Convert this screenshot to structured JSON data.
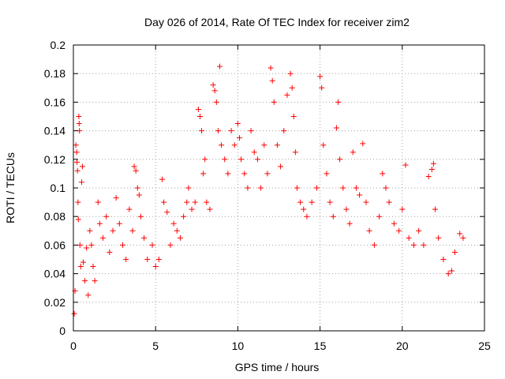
{
  "chart_data": {
    "type": "scatter",
    "title": "Day 026 of 2014, Rate Of TEC Index for receiver zim2",
    "xlabel": "GPS time / hours",
    "ylabel": "ROTI / TECUs",
    "xlim": [
      0,
      25
    ],
    "ylim": [
      0,
      0.2
    ],
    "xticks": [
      "0",
      "5",
      "10",
      "15",
      "20",
      "25"
    ],
    "yticks": [
      "0",
      "0.02",
      "0.04",
      "0.06",
      "0.08",
      "0.1",
      "0.12",
      "0.14",
      "0.16",
      "0.18",
      "0.2"
    ],
    "grid": "dotted",
    "legend": "none",
    "marker": "+",
    "color": "#ff0000",
    "series": [
      {
        "points": [
          [
            0.05,
            0.012
          ],
          [
            0.1,
            0.028
          ],
          [
            0.15,
            0.13
          ],
          [
            0.2,
            0.125
          ],
          [
            0.22,
            0.118
          ],
          [
            0.25,
            0.112
          ],
          [
            0.28,
            0.09
          ],
          [
            0.3,
            0.078
          ],
          [
            0.33,
            0.15
          ],
          [
            0.35,
            0.145
          ],
          [
            0.37,
            0.14
          ],
          [
            0.4,
            0.06
          ],
          [
            0.45,
            0.045
          ],
          [
            0.5,
            0.104
          ],
          [
            0.55,
            0.115
          ],
          [
            0.6,
            0.048
          ],
          [
            0.7,
            0.035
          ],
          [
            0.8,
            0.058
          ],
          [
            0.9,
            0.025
          ],
          [
            1.0,
            0.07
          ],
          [
            1.1,
            0.06
          ],
          [
            1.2,
            0.045
          ],
          [
            1.3,
            0.035
          ],
          [
            1.5,
            0.09
          ],
          [
            1.6,
            0.075
          ],
          [
            1.8,
            0.065
          ],
          [
            2.0,
            0.08
          ],
          [
            2.2,
            0.055
          ],
          [
            2.4,
            0.07
          ],
          [
            2.6,
            0.093
          ],
          [
            2.8,
            0.075
          ],
          [
            3.0,
            0.06
          ],
          [
            3.2,
            0.05
          ],
          [
            3.4,
            0.085
          ],
          [
            3.6,
            0.07
          ],
          [
            3.7,
            0.115
          ],
          [
            3.8,
            0.112
          ],
          [
            3.9,
            0.1
          ],
          [
            4.0,
            0.095
          ],
          [
            4.1,
            0.08
          ],
          [
            4.3,
            0.065
          ],
          [
            4.5,
            0.05
          ],
          [
            4.8,
            0.06
          ],
          [
            5.0,
            0.045
          ],
          [
            5.2,
            0.05
          ],
          [
            5.4,
            0.106
          ],
          [
            5.5,
            0.09
          ],
          [
            5.7,
            0.083
          ],
          [
            5.9,
            0.06
          ],
          [
            6.1,
            0.075
          ],
          [
            6.3,
            0.07
          ],
          [
            6.5,
            0.065
          ],
          [
            6.7,
            0.08
          ],
          [
            6.9,
            0.09
          ],
          [
            7.0,
            0.1
          ],
          [
            7.2,
            0.085
          ],
          [
            7.4,
            0.09
          ],
          [
            7.6,
            0.155
          ],
          [
            7.7,
            0.15
          ],
          [
            7.8,
            0.14
          ],
          [
            7.9,
            0.11
          ],
          [
            8.0,
            0.12
          ],
          [
            8.1,
            0.09
          ],
          [
            8.3,
            0.085
          ],
          [
            8.5,
            0.172
          ],
          [
            8.6,
            0.168
          ],
          [
            8.7,
            0.16
          ],
          [
            8.8,
            0.14
          ],
          [
            8.9,
            0.185
          ],
          [
            9.0,
            0.13
          ],
          [
            9.2,
            0.12
          ],
          [
            9.4,
            0.11
          ],
          [
            9.6,
            0.14
          ],
          [
            9.8,
            0.13
          ],
          [
            10.0,
            0.145
          ],
          [
            10.1,
            0.135
          ],
          [
            10.2,
            0.12
          ],
          [
            10.4,
            0.11
          ],
          [
            10.6,
            0.1
          ],
          [
            10.8,
            0.14
          ],
          [
            11.0,
            0.125
          ],
          [
            11.2,
            0.12
          ],
          [
            11.4,
            0.1
          ],
          [
            11.6,
            0.13
          ],
          [
            11.8,
            0.11
          ],
          [
            12.0,
            0.184
          ],
          [
            12.1,
            0.175
          ],
          [
            12.2,
            0.16
          ],
          [
            12.4,
            0.13
          ],
          [
            12.6,
            0.115
          ],
          [
            12.8,
            0.14
          ],
          [
            13.0,
            0.165
          ],
          [
            13.2,
            0.18
          ],
          [
            13.3,
            0.17
          ],
          [
            13.4,
            0.15
          ],
          [
            13.5,
            0.125
          ],
          [
            13.6,
            0.1
          ],
          [
            13.8,
            0.09
          ],
          [
            14.0,
            0.085
          ],
          [
            14.2,
            0.08
          ],
          [
            14.5,
            0.09
          ],
          [
            14.8,
            0.1
          ],
          [
            15.0,
            0.178
          ],
          [
            15.1,
            0.17
          ],
          [
            15.2,
            0.13
          ],
          [
            15.4,
            0.11
          ],
          [
            15.6,
            0.09
          ],
          [
            15.8,
            0.08
          ],
          [
            16.0,
            0.142
          ],
          [
            16.1,
            0.16
          ],
          [
            16.2,
            0.12
          ],
          [
            16.4,
            0.1
          ],
          [
            16.6,
            0.085
          ],
          [
            16.8,
            0.075
          ],
          [
            17.0,
            0.125
          ],
          [
            17.2,
            0.1
          ],
          [
            17.4,
            0.095
          ],
          [
            17.6,
            0.131
          ],
          [
            17.8,
            0.09
          ],
          [
            18.0,
            0.07
          ],
          [
            18.3,
            0.06
          ],
          [
            18.6,
            0.08
          ],
          [
            18.8,
            0.11
          ],
          [
            19.0,
            0.1
          ],
          [
            19.2,
            0.09
          ],
          [
            19.5,
            0.075
          ],
          [
            19.8,
            0.07
          ],
          [
            20.0,
            0.085
          ],
          [
            20.2,
            0.116
          ],
          [
            20.4,
            0.065
          ],
          [
            20.7,
            0.06
          ],
          [
            21.0,
            0.07
          ],
          [
            21.3,
            0.06
          ],
          [
            21.6,
            0.108
          ],
          [
            21.8,
            0.113
          ],
          [
            21.9,
            0.117
          ],
          [
            22.0,
            0.085
          ],
          [
            22.2,
            0.065
          ],
          [
            22.5,
            0.05
          ],
          [
            22.8,
            0.04
          ],
          [
            23.0,
            0.042
          ],
          [
            23.2,
            0.055
          ],
          [
            23.5,
            0.068
          ],
          [
            23.7,
            0.065
          ]
        ]
      }
    ]
  }
}
